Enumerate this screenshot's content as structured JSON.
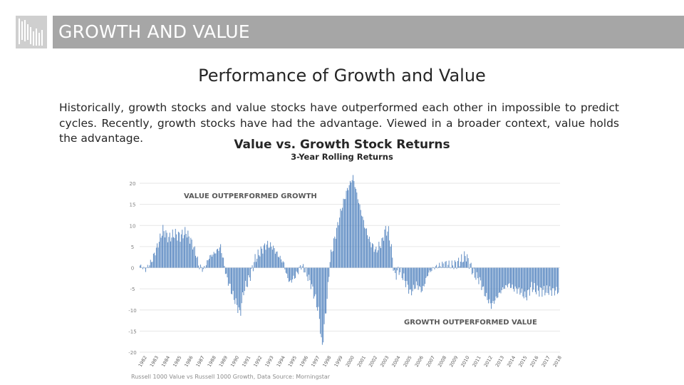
{
  "header": {
    "title": "GROWTH AND VALUE"
  },
  "slide": {
    "subtitle": "Performance of Growth and Value",
    "paragraph": "Historically, growth stocks and value stocks have outperformed each other in impossible to predict cycles. Recently, growth stocks have had the advantage. Viewed in a broader context, value holds the advantage."
  },
  "colors": {
    "bar": "#4f81bd",
    "grid": "#e6e6e6",
    "title_bar": "#a6a6a6"
  },
  "chart_data": {
    "type": "bar",
    "title": "Value vs. Growth Stock Returns",
    "subtitle": "3-Year Rolling Returns",
    "annotations": [
      "VALUE OUTPERFORMED GROWTH",
      "GROWTH OUTPERFORMED VALUE"
    ],
    "source": "Russell 1000 Value vs Russell 1000 Growth, Data Source: Morningstar",
    "ylim": [
      -20,
      20
    ],
    "yticks": [
      20,
      15,
      10,
      5,
      0,
      -5,
      -10,
      -15,
      -20
    ],
    "xlabels": [
      "1982",
      "1983",
      "1984",
      "1985",
      "1986",
      "1987",
      "1988",
      "1989",
      "1990",
      "1991",
      "1992",
      "1993",
      "1994",
      "1995",
      "1996",
      "1997",
      "1998",
      "1999",
      "2000",
      "2001",
      "2002",
      "2003",
      "2004",
      "2005",
      "2006",
      "2007",
      "2008",
      "2009",
      "2010",
      "2011",
      "2012",
      "2013",
      "2014",
      "2015",
      "2016",
      "2017",
      "2018"
    ],
    "anchors": [
      [
        1982.0,
        0.5
      ],
      [
        1982.5,
        -0.5
      ],
      [
        1983.0,
        1.5
      ],
      [
        1983.5,
        5.0
      ],
      [
        1984.0,
        9.0
      ],
      [
        1984.5,
        7.0
      ],
      [
        1985.0,
        8.0
      ],
      [
        1985.5,
        7.5
      ],
      [
        1986.0,
        8.5
      ],
      [
        1986.5,
        6.0
      ],
      [
        1986.9,
        3.0
      ],
      [
        1987.1,
        0.5
      ],
      [
        1987.5,
        -0.5
      ],
      [
        1987.8,
        1.0
      ],
      [
        1988.0,
        2.5
      ],
      [
        1988.5,
        3.5
      ],
      [
        1989.0,
        5.0
      ],
      [
        1989.3,
        1.0
      ],
      [
        1989.5,
        -2.0
      ],
      [
        1990.0,
        -6.0
      ],
      [
        1990.5,
        -9.5
      ],
      [
        1990.7,
        -11.0
      ],
      [
        1991.0,
        -5.5
      ],
      [
        1991.5,
        -2.5
      ],
      [
        1992.0,
        2.0
      ],
      [
        1992.5,
        4.0
      ],
      [
        1993.0,
        5.5
      ],
      [
        1993.5,
        5.0
      ],
      [
        1994.0,
        3.0
      ],
      [
        1994.5,
        1.0
      ],
      [
        1994.7,
        -1.5
      ],
      [
        1995.0,
        -3.5
      ],
      [
        1995.5,
        -2.0
      ],
      [
        1996.0,
        0.5
      ],
      [
        1996.3,
        -0.5
      ],
      [
        1996.8,
        -3.5
      ],
      [
        1997.3,
        -8.0
      ],
      [
        1997.6,
        -12.0
      ],
      [
        1997.8,
        -19.5
      ],
      [
        1998.0,
        -14.0
      ],
      [
        1998.3,
        -6.0
      ],
      [
        1998.5,
        2.0
      ],
      [
        1999.0,
        8.0
      ],
      [
        1999.5,
        14.0
      ],
      [
        2000.0,
        18.5
      ],
      [
        2000.5,
        21.5
      ],
      [
        2001.0,
        15.5
      ],
      [
        2001.5,
        10.0
      ],
      [
        2002.0,
        6.0
      ],
      [
        2002.5,
        4.0
      ],
      [
        2003.0,
        6.0
      ],
      [
        2003.3,
        9.0
      ],
      [
        2003.6,
        8.5
      ],
      [
        2003.9,
        3.0
      ],
      [
        2004.1,
        -2.0
      ],
      [
        2004.5,
        -0.5
      ],
      [
        2005.0,
        -3.0
      ],
      [
        2005.5,
        -6.0
      ],
      [
        2006.0,
        -4.0
      ],
      [
        2006.5,
        -5.5
      ],
      [
        2007.0,
        -1.5
      ],
      [
        2007.5,
        0.0
      ],
      [
        2008.0,
        0.5
      ],
      [
        2008.5,
        1.0
      ],
      [
        2009.0,
        0.5
      ],
      [
        2009.5,
        1.0
      ],
      [
        2010.0,
        2.0
      ],
      [
        2010.3,
        3.0
      ],
      [
        2010.6,
        1.0
      ],
      [
        2011.0,
        -1.5
      ],
      [
        2011.5,
        -3.0
      ],
      [
        2012.0,
        -6.5
      ],
      [
        2012.5,
        -9.0
      ],
      [
        2013.0,
        -7.0
      ],
      [
        2013.5,
        -5.0
      ],
      [
        2014.0,
        -4.0
      ],
      [
        2014.5,
        -5.0
      ],
      [
        2015.0,
        -5.5
      ],
      [
        2015.5,
        -7.0
      ],
      [
        2016.0,
        -4.5
      ],
      [
        2016.5,
        -5.5
      ]
    ]
  }
}
